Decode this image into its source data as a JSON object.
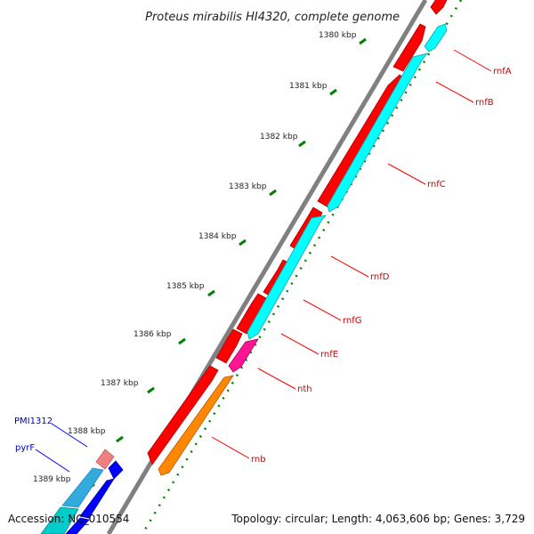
{
  "title": "Proteus mirabilis HI4320, complete genome",
  "ticks": [
    {
      "label": "1380 kbp"
    },
    {
      "label": "1381 kbp"
    },
    {
      "label": "1382 kbp"
    },
    {
      "label": "1383 kbp"
    },
    {
      "label": "1384 kbp"
    },
    {
      "label": "1385 kbp"
    },
    {
      "label": "1386 kbp"
    },
    {
      "label": "1387 kbp"
    },
    {
      "label": "1388 kbp"
    },
    {
      "label": "1389 kbp"
    }
  ],
  "genes_right": [
    {
      "label": "rnfA"
    },
    {
      "label": "rnfB"
    },
    {
      "label": "rnfC"
    },
    {
      "label": "rnfD"
    },
    {
      "label": "rnfG"
    },
    {
      "label": "rnfE"
    },
    {
      "label": "nth"
    },
    {
      "label": "rnb"
    }
  ],
  "genes_left": [
    {
      "label": "PMI1312"
    },
    {
      "label": "pyrF"
    }
  ],
  "footer": {
    "accession": "Accession: NC_010554",
    "topology": "Topology: circular; Length: 4,063,606 bp; Genes: 3,729"
  },
  "colors": {
    "cds_red": "#ff0000",
    "cds_cyan": "#00ffff",
    "cds_orange": "#ff8800",
    "cds_magenta": "#ff1493",
    "cds_blue": "#0000ff",
    "backbone": "#808080",
    "ticks": "#008000",
    "label_red": "#cc0000",
    "label_blue": "#0000cc"
  }
}
